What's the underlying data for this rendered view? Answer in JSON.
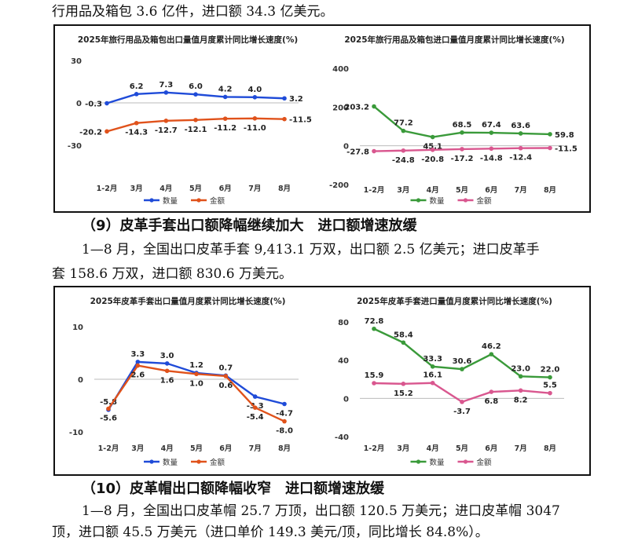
{
  "paragraph_top": "行用品及箱包 3.6 亿件，进口额 34.3 亿美元。",
  "section9": {
    "heading": "（9）皮革手套出口额降幅继续加大　进口额增速放缓",
    "para_line1": "1—8 月，全国出口皮革手套 9,413.1 万双，出口额 2.5 亿美元；进口皮革手",
    "para_line2": "套 158.6 万双，进口额 830.6 万美元。"
  },
  "section10": {
    "heading": "（10）皮革帽出口额降幅收窄　进口额增速放缓",
    "para_line1": "1—8 月，全国出口皮革帽 25.7 万顶，出口额 120.5 万美元；进口皮革帽 3047",
    "para_line2": "顶，进口额 45.5 万美元（进口单价 149.3 美元/顶，同比增长 84.8%）。"
  },
  "colors": {
    "blue": "#1f4bd8",
    "orange": "#e0521b",
    "green": "#3a9a3a",
    "pink": "#d9578f"
  },
  "chart_data": [
    {
      "type": "line",
      "title": "2025年旅行用品及箱包出口量值月度累计同比增长速度(%)",
      "categories": [
        "1-2月",
        "3月",
        "4月",
        "5月",
        "6月",
        "7月",
        "8月"
      ],
      "ylim": [
        -30,
        30
      ],
      "yticks": [
        "30",
        "0",
        "-30"
      ],
      "yticks_values": [
        30,
        0,
        -30
      ],
      "series": [
        {
          "name": "数量",
          "color": "#1f4bd8",
          "values": [
            -0.3,
            6.2,
            7.3,
            6.0,
            4.2,
            4.0,
            3.2
          ],
          "labels": [
            "-0.3",
            "6.2",
            "7.3",
            "6.0",
            "4.2",
            "4.0",
            "3.2"
          ]
        },
        {
          "name": "金额",
          "color": "#e0521b",
          "values": [
            -20.2,
            -14.3,
            -12.7,
            -12.1,
            -11.2,
            -11.0,
            -11.5
          ],
          "labels": [
            "-20.2",
            "-14.3",
            "-12.7",
            "-12.1",
            "-11.2",
            "-11.0",
            "-11.5"
          ]
        }
      ]
    },
    {
      "type": "line",
      "title": "2025年旅行用品及箱包进口量值月度累计同比增长速度(%)",
      "categories": [
        "1-2月",
        "3月",
        "4月",
        "5月",
        "6月",
        "7月",
        "8月"
      ],
      "ylim": [
        -200,
        400
      ],
      "yticks": [
        "400",
        "200",
        "0",
        "-200"
      ],
      "yticks_values": [
        400,
        200,
        0,
        -200
      ],
      "series": [
        {
          "name": "数量",
          "color": "#3a9a3a",
          "values": [
            203.2,
            77.2,
            45.1,
            68.5,
            67.4,
            63.6,
            59.8
          ],
          "labels": [
            "203.2",
            "77.2",
            "45.1",
            "68.5",
            "67.4",
            "63.6",
            "59.8"
          ]
        },
        {
          "name": "金额",
          "color": "#d9578f",
          "values": [
            -27.8,
            -24.8,
            -20.8,
            -17.2,
            -14.8,
            -12.4,
            -11.5
          ],
          "labels": [
            "-27.8",
            "-24.8",
            "-20.8",
            "-17.2",
            "-14.8",
            "-12.4",
            "-11.5"
          ]
        }
      ]
    },
    {
      "type": "line",
      "title": "2025年皮革手套出口量值月度累计同比增长速度(%)",
      "categories": [
        "1-2月",
        "3月",
        "4月",
        "5月",
        "6月",
        "7月",
        "8月"
      ],
      "ylim": [
        -10,
        10
      ],
      "yticks": [
        "10",
        "0",
        "-10"
      ],
      "yticks_values": [
        10,
        0,
        -10
      ],
      "series": [
        {
          "name": "数量",
          "color": "#1f4bd8",
          "values": [
            -5.8,
            3.3,
            3.0,
            1.2,
            0.7,
            -3.3,
            -4.7
          ],
          "labels": [
            "-5.8",
            "3.3",
            "3.0",
            "1.2",
            "0.7",
            "-3.3",
            "-4.7"
          ]
        },
        {
          "name": "金额",
          "color": "#e0521b",
          "values": [
            -5.6,
            2.6,
            1.6,
            1.0,
            0.6,
            -5.4,
            -8.0
          ],
          "labels": [
            "-5.6",
            "2.6",
            "1.6",
            "1.0",
            "0.6",
            "-5.4",
            "-8.0"
          ]
        }
      ]
    },
    {
      "type": "line",
      "title": "2025年皮革手套进口量值月度累计同比增长速度(%)",
      "categories": [
        "1-2月",
        "3月",
        "4月",
        "5月",
        "6月",
        "7月",
        "8月"
      ],
      "ylim": [
        -40,
        80
      ],
      "yticks": [
        "80",
        "40",
        "0",
        "-40"
      ],
      "yticks_values": [
        80,
        40,
        0,
        -40
      ],
      "series": [
        {
          "name": "数量",
          "color": "#3a9a3a",
          "values": [
            72.8,
            58.4,
            33.3,
            30.6,
            46.2,
            23.0,
            22.0
          ],
          "labels": [
            "72.8",
            "58.4",
            "33.3",
            "30.6",
            "46.2",
            "23.0",
            "22.0"
          ]
        },
        {
          "name": "金额",
          "color": "#d9578f",
          "values": [
            15.9,
            15.2,
            16.1,
            -3.7,
            6.8,
            8.2,
            5.5
          ],
          "labels": [
            "15.9",
            "15.2",
            "16.1",
            "-3.7",
            "6.8",
            "8.2",
            "5.5"
          ]
        }
      ]
    }
  ]
}
